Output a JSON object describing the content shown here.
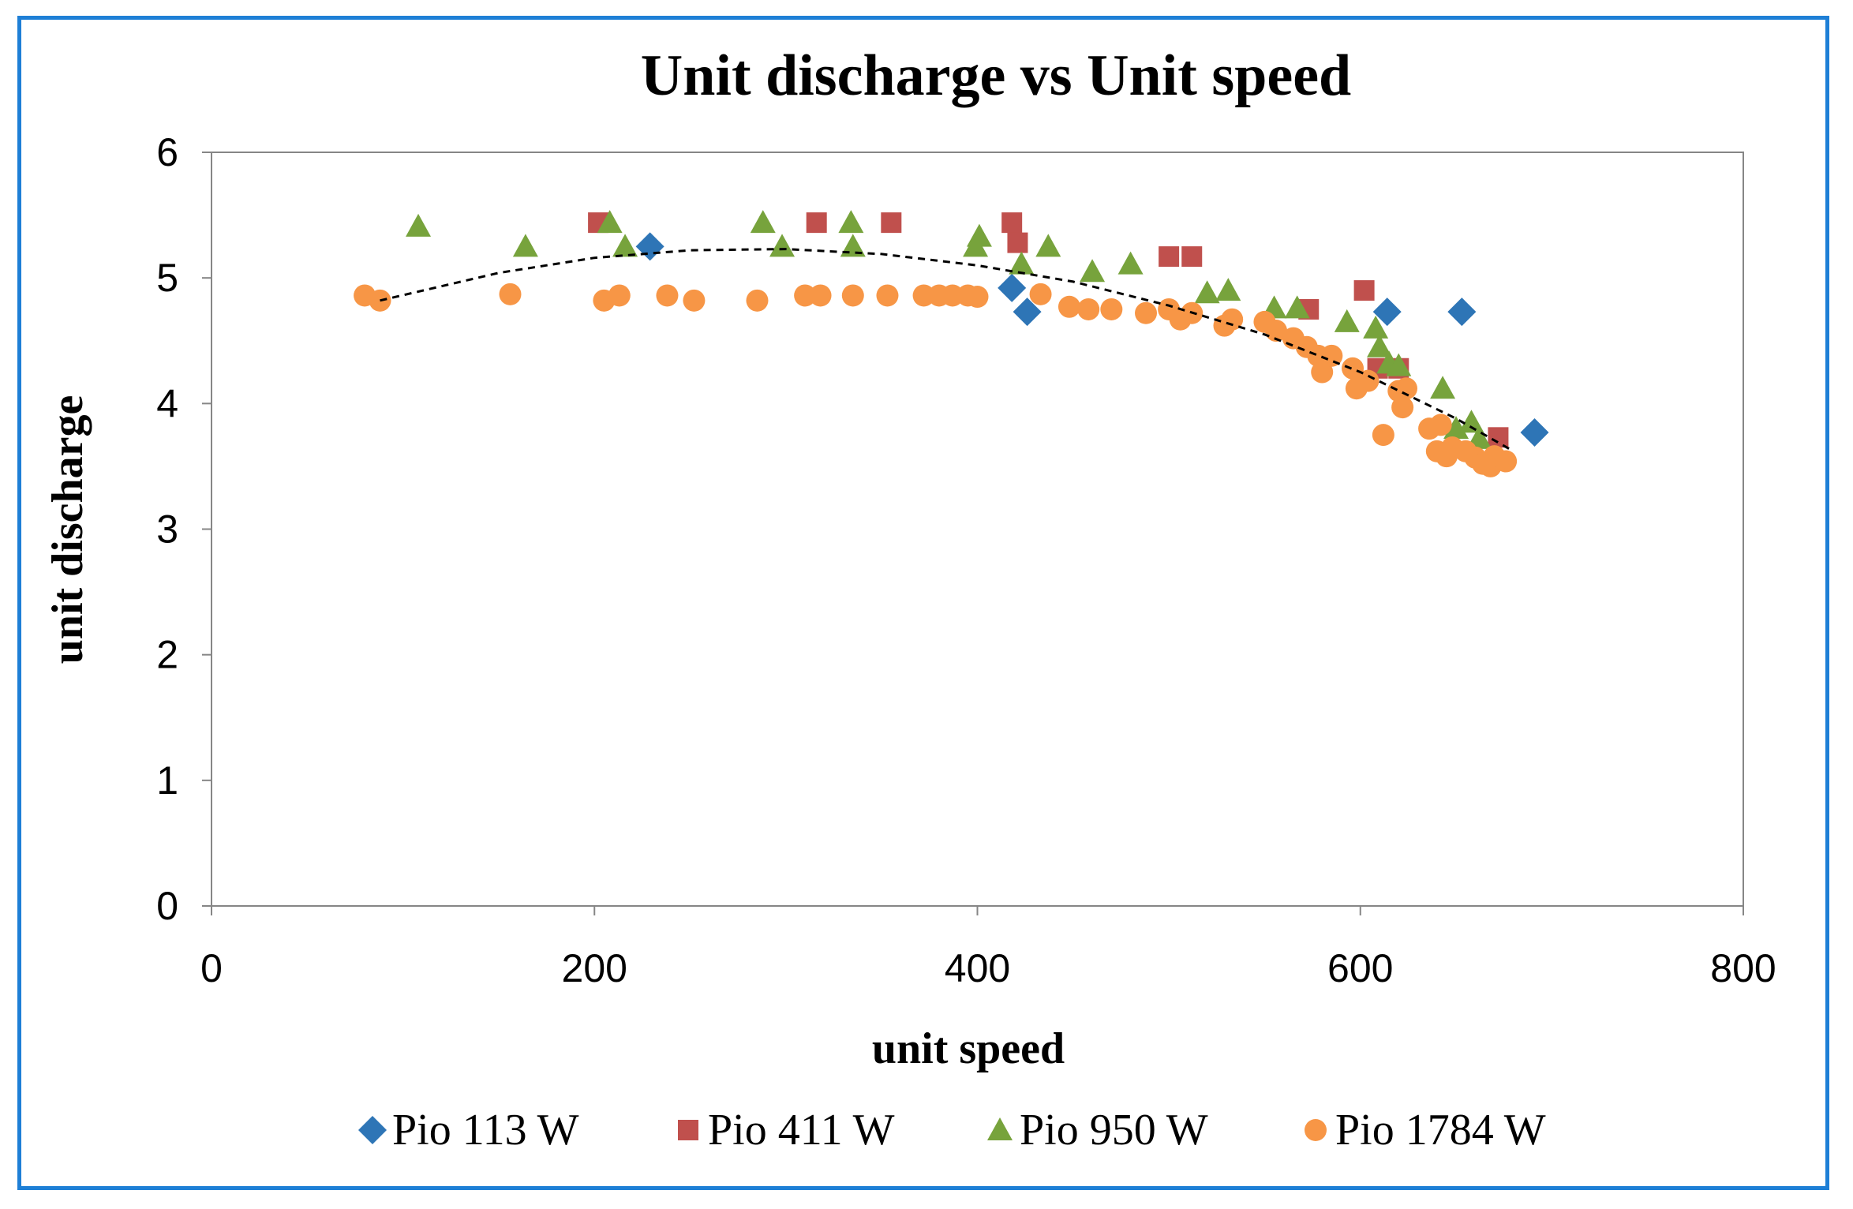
{
  "chart_data": {
    "type": "scatter",
    "title": "Unit discharge vs Unit speed",
    "xlabel": "unit speed",
    "ylabel": "unit discharge",
    "xlim": [
      0,
      800
    ],
    "ylim": [
      0,
      6
    ],
    "xticks": [
      0,
      200,
      400,
      600,
      800
    ],
    "yticks": [
      0,
      1,
      2,
      3,
      4,
      5,
      6
    ],
    "grid": false,
    "legend_position": "bottom",
    "series": [
      {
        "name": "Pio 113 W",
        "marker": "diamond",
        "color": "#2e75b6",
        "points": [
          [
            229,
            5.25
          ],
          [
            418,
            4.92
          ],
          [
            426,
            4.73
          ],
          [
            614,
            4.73
          ],
          [
            653,
            4.73
          ],
          [
            691,
            3.77
          ]
        ]
      },
      {
        "name": "Pio 411 W",
        "marker": "square",
        "color": "#c0504d",
        "points": [
          [
            202,
            5.44
          ],
          [
            316,
            5.44
          ],
          [
            355,
            5.44
          ],
          [
            418,
            5.44
          ],
          [
            421,
            5.28
          ],
          [
            500,
            5.17
          ],
          [
            512,
            5.17
          ],
          [
            573,
            4.75
          ],
          [
            602,
            4.9
          ],
          [
            609,
            4.28
          ],
          [
            620,
            4.28
          ],
          [
            672,
            3.73
          ]
        ]
      },
      {
        "name": "Pio 950 W",
        "marker": "triangle",
        "color": "#77a33c",
        "points": [
          [
            108,
            5.41
          ],
          [
            164,
            5.25
          ],
          [
            208,
            5.44
          ],
          [
            216,
            5.25
          ],
          [
            288,
            5.44
          ],
          [
            298,
            5.25
          ],
          [
            334,
            5.44
          ],
          [
            335,
            5.25
          ],
          [
            399,
            5.25
          ],
          [
            401,
            5.33
          ],
          [
            423,
            5.11
          ],
          [
            437,
            5.25
          ],
          [
            460,
            5.05
          ],
          [
            480,
            5.11
          ],
          [
            520,
            4.88
          ],
          [
            531,
            4.9
          ],
          [
            555,
            4.76
          ],
          [
            567,
            4.76
          ],
          [
            593,
            4.65
          ],
          [
            608,
            4.6
          ],
          [
            610,
            4.45
          ],
          [
            615,
            4.32
          ],
          [
            620,
            4.3
          ],
          [
            643,
            4.12
          ],
          [
            650,
            3.8
          ],
          [
            658,
            3.85
          ],
          [
            662,
            3.72
          ]
        ]
      },
      {
        "name": "Pio 1784 W",
        "marker": "circle",
        "color": "#f79646",
        "points": [
          [
            80,
            4.86
          ],
          [
            88,
            4.82
          ],
          [
            156,
            4.87
          ],
          [
            205,
            4.82
          ],
          [
            213,
            4.86
          ],
          [
            238,
            4.86
          ],
          [
            252,
            4.82
          ],
          [
            285,
            4.82
          ],
          [
            310,
            4.86
          ],
          [
            318,
            4.86
          ],
          [
            335,
            4.86
          ],
          [
            353,
            4.86
          ],
          [
            372,
            4.86
          ],
          [
            380,
            4.86
          ],
          [
            387,
            4.86
          ],
          [
            395,
            4.86
          ],
          [
            400,
            4.85
          ],
          [
            433,
            4.87
          ],
          [
            448,
            4.77
          ],
          [
            458,
            4.75
          ],
          [
            470,
            4.75
          ],
          [
            488,
            4.72
          ],
          [
            500,
            4.75
          ],
          [
            506,
            4.67
          ],
          [
            512,
            4.72
          ],
          [
            529,
            4.62
          ],
          [
            533,
            4.67
          ],
          [
            550,
            4.65
          ],
          [
            556,
            4.58
          ],
          [
            565,
            4.52
          ],
          [
            572,
            4.45
          ],
          [
            578,
            4.38
          ],
          [
            580,
            4.25
          ],
          [
            585,
            4.38
          ],
          [
            596,
            4.28
          ],
          [
            598,
            4.12
          ],
          [
            604,
            4.18
          ],
          [
            612,
            3.75
          ],
          [
            620,
            4.1
          ],
          [
            622,
            3.97
          ],
          [
            624,
            4.12
          ],
          [
            636,
            3.8
          ],
          [
            640,
            3.62
          ],
          [
            642,
            3.83
          ],
          [
            645,
            3.58
          ],
          [
            648,
            3.65
          ],
          [
            655,
            3.62
          ],
          [
            660,
            3.57
          ],
          [
            664,
            3.52
          ],
          [
            668,
            3.5
          ],
          [
            670,
            3.58
          ],
          [
            676,
            3.54
          ]
        ]
      }
    ],
    "trendline": {
      "style": "dashed",
      "color": "#000000",
      "x_range": [
        88,
        680
      ],
      "points": [
        [
          88,
          4.82
        ],
        [
          150,
          5.04
        ],
        [
          200,
          5.16
        ],
        [
          250,
          5.22
        ],
        [
          300,
          5.23
        ],
        [
          350,
          5.19
        ],
        [
          400,
          5.1
        ],
        [
          450,
          4.97
        ],
        [
          500,
          4.78
        ],
        [
          550,
          4.55
        ],
        [
          600,
          4.25
        ],
        [
          650,
          3.88
        ],
        [
          680,
          3.62
        ]
      ]
    }
  }
}
